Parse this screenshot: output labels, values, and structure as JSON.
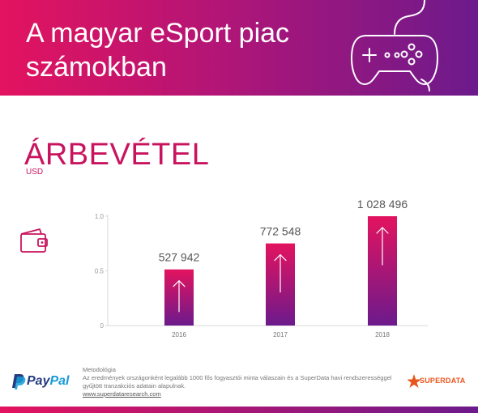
{
  "header": {
    "title_line1": "A magyar eSport piac",
    "title_line2": "számokban",
    "icon": "gamepad-icon"
  },
  "section": {
    "title": "ÁRBEVÉTEL",
    "unit": "USD",
    "icon": "wallet-icon"
  },
  "chart_data": {
    "type": "bar",
    "categories": [
      "2016",
      "2017",
      "2018"
    ],
    "values": [
      527942,
      772548,
      1028496
    ],
    "data_labels": [
      "527 942",
      "772 548",
      "1 028 496"
    ],
    "y_ticks": [
      0,
      0.5,
      1.0
    ],
    "y_tick_labels": [
      "0",
      "0.5",
      "1.0"
    ],
    "ylim": [
      0,
      1.0
    ],
    "normalized_by": 1028496,
    "grid": false,
    "bar_icon": "arrow-up-icon",
    "colors": {
      "bar_top": "#e3135f",
      "bar_bottom": "#6c1a8c"
    }
  },
  "footer": {
    "paypal_left": "Pay",
    "paypal_right": "Pal",
    "method_title": "Metodológia",
    "method_text": "Az eredmények országonként legalább 1000 fős fogyasztói minta válaszain és a SuperData havi rendszerességgel gyűjtött tranzakciós adatain alapulnak.",
    "link": "www.superdataresearch.com",
    "superdata": "SUPERDATA"
  }
}
